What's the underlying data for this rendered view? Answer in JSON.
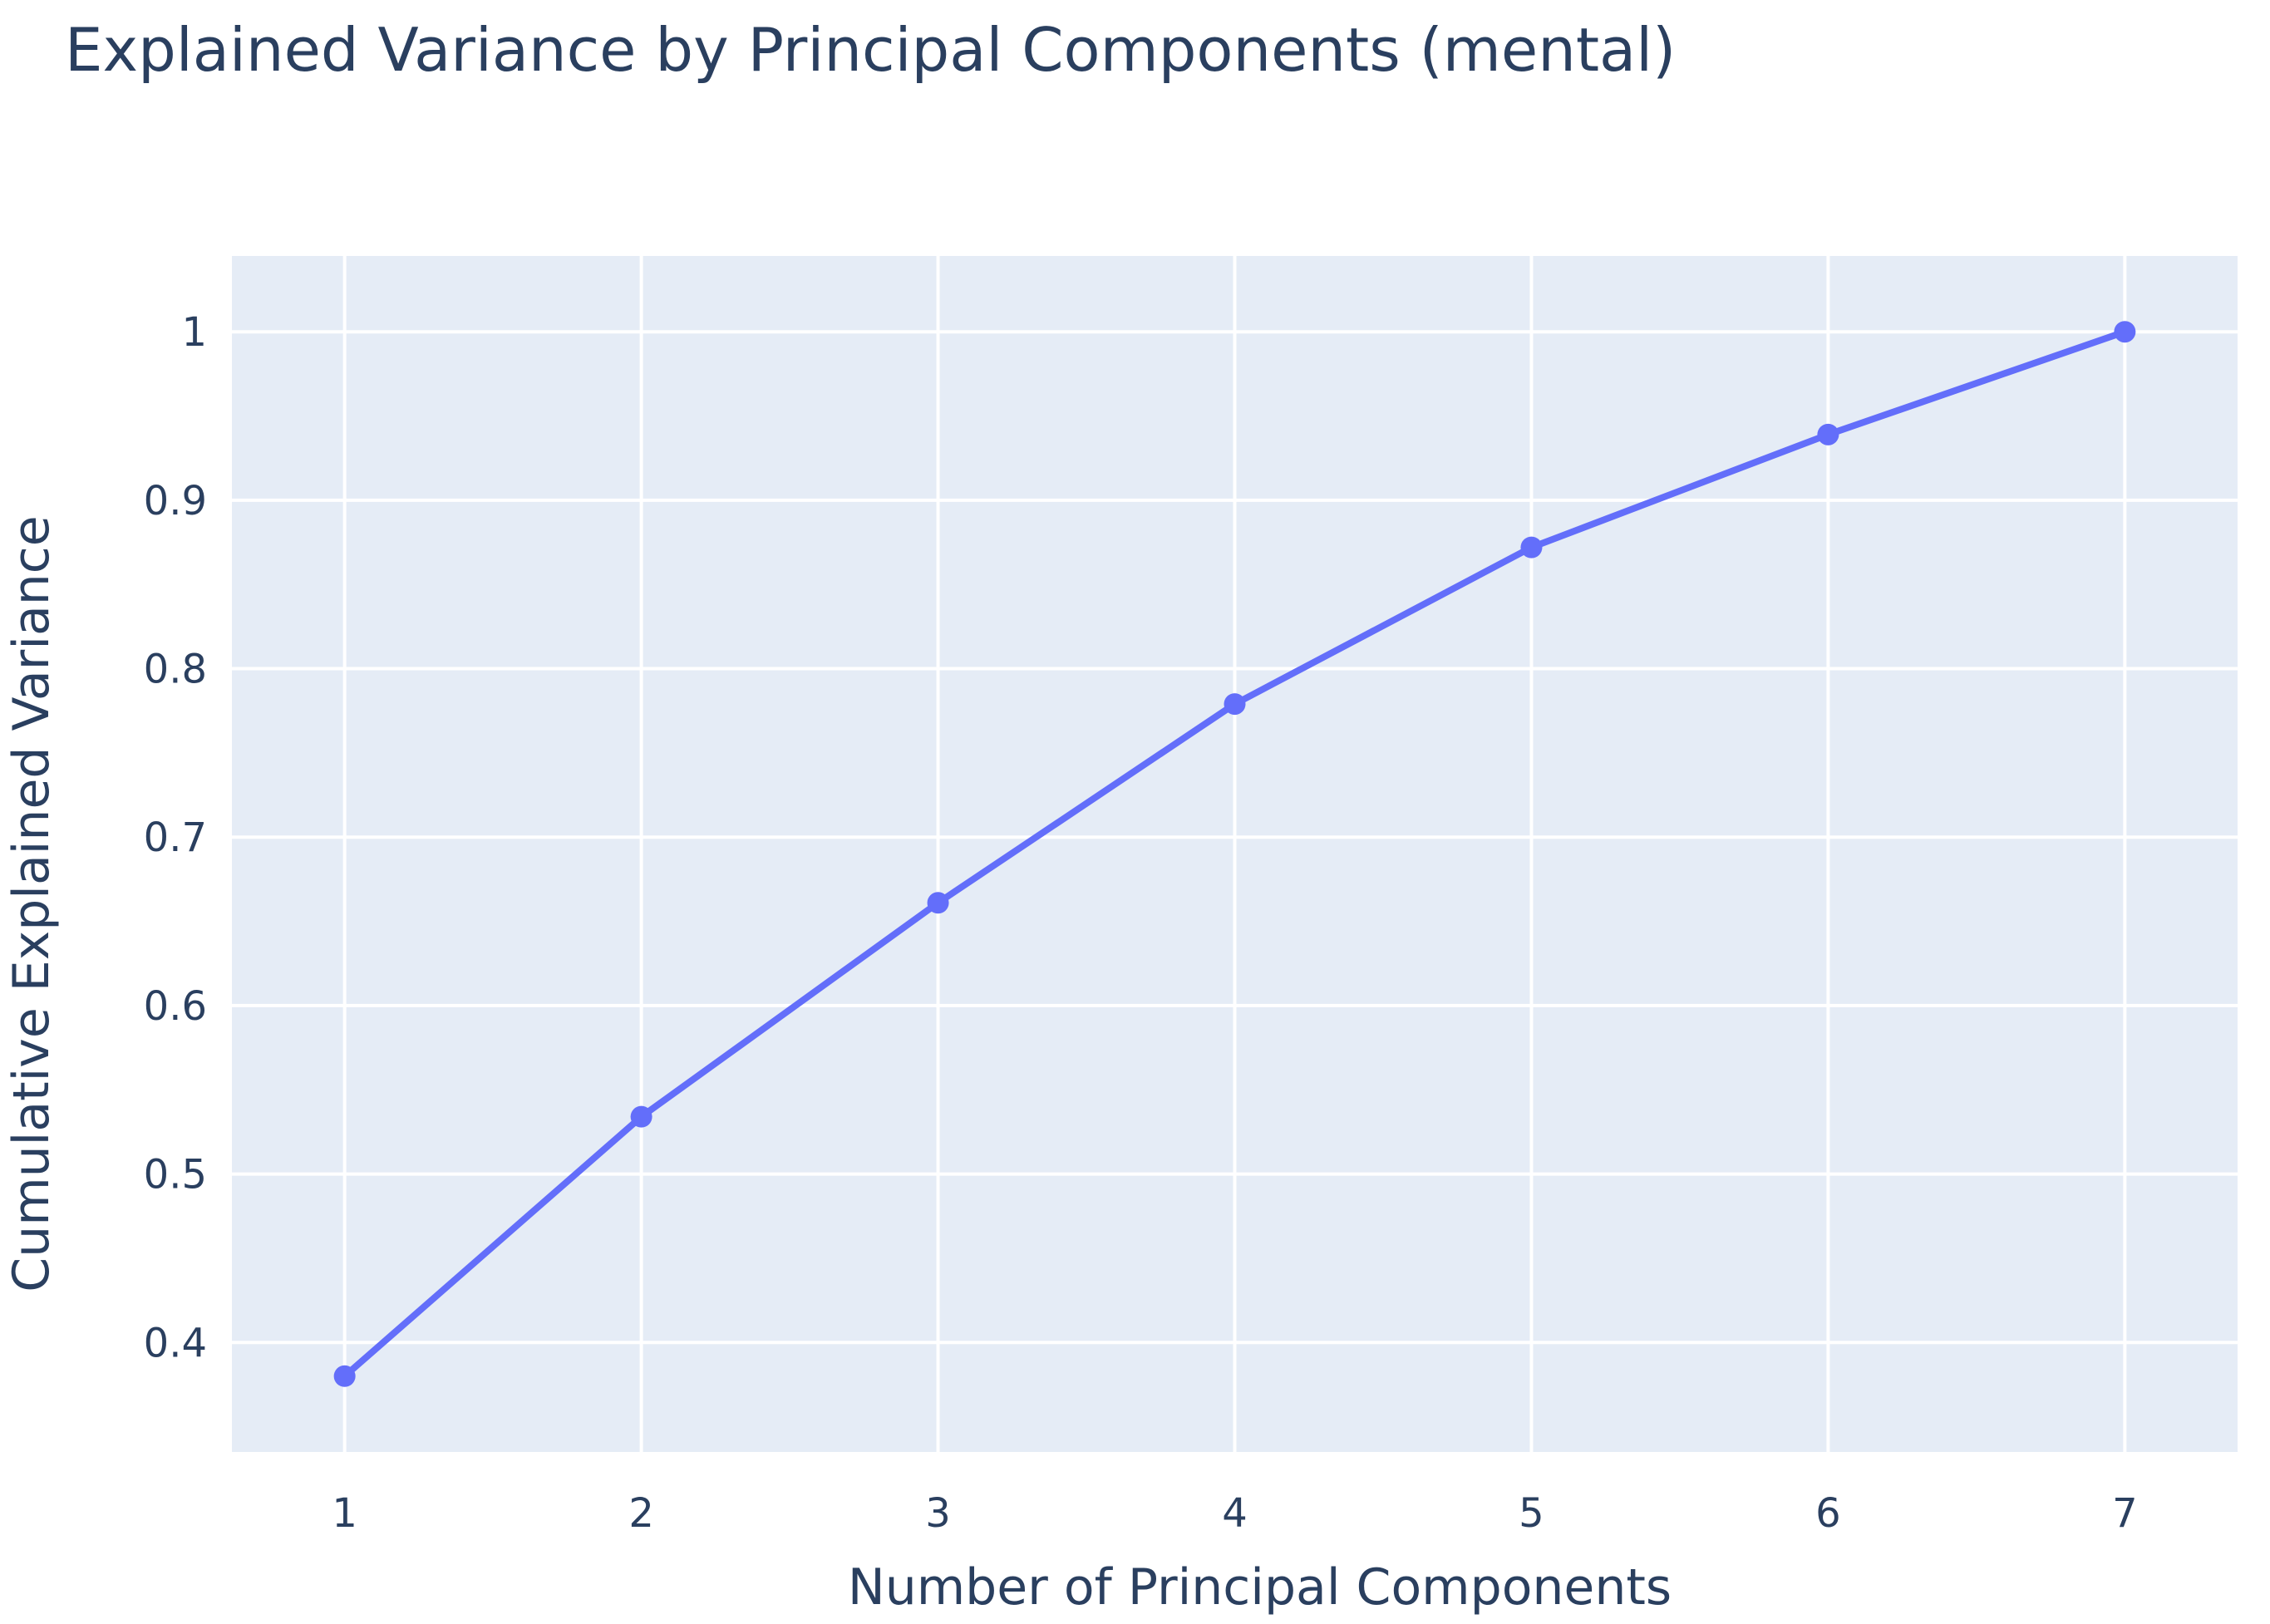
{
  "title": "Explained Variance by Principal Components (mental)",
  "chart_data": {
    "type": "line",
    "title": "Explained Variance by Principal Components (mental)",
    "xlabel": "Number of Principal Components",
    "ylabel": "Cumulative Explained Variance",
    "x": [
      1,
      2,
      3,
      4,
      5,
      6,
      7
    ],
    "y": [
      0.38,
      0.534,
      0.661,
      0.779,
      0.872,
      0.939,
      1.0
    ],
    "xlim": [
      0.62,
      7.38
    ],
    "ylim": [
      0.335,
      1.045
    ],
    "xticks": [
      1,
      2,
      3,
      4,
      5,
      6,
      7
    ],
    "yticks": [
      0.4,
      0.5,
      0.6,
      0.7,
      0.8,
      0.9,
      1
    ],
    "ytick_labels": [
      "0.4",
      "0.5",
      "0.6",
      "0.7",
      "0.8",
      "0.9",
      "1"
    ],
    "grid": true,
    "markers": true,
    "legend": "none",
    "colors": {
      "line": "#636efa",
      "plot_bg": "#e5ecf6",
      "grid": "#ffffff",
      "text": "#2a3f5f"
    }
  }
}
